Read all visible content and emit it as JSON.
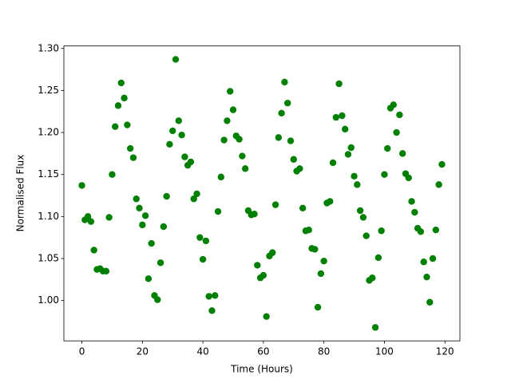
{
  "chart_data": {
    "type": "scatter",
    "x_label": "Time (Hours)",
    "y_label": "Normalised Flux",
    "color": "#008000",
    "x": [
      0,
      1,
      2,
      3,
      4,
      5,
      6,
      7,
      8,
      9,
      10,
      11,
      12,
      13,
      14,
      15,
      16,
      17,
      18,
      19,
      20,
      21,
      22,
      23,
      24,
      25,
      26,
      27,
      28,
      29,
      30,
      31,
      32,
      33,
      34,
      35,
      36,
      37,
      38,
      39,
      40,
      41,
      42,
      43,
      44,
      45,
      46,
      47,
      48,
      49,
      50,
      51,
      52,
      53,
      54,
      55,
      56,
      57,
      58,
      59,
      60,
      61,
      62,
      63,
      64,
      65,
      66,
      67,
      68,
      69,
      70,
      71,
      72,
      73,
      74,
      75,
      76,
      77,
      78,
      79,
      80,
      81,
      82,
      83,
      84,
      85,
      86,
      87,
      88,
      89,
      90,
      91,
      92,
      93,
      94,
      95,
      96,
      97,
      98,
      99,
      100,
      101,
      102,
      103,
      104,
      105,
      106,
      107,
      108,
      109,
      110,
      111,
      112,
      113,
      114,
      115,
      116,
      117,
      118,
      119
    ],
    "y": [
      1.137,
      1.096,
      1.1,
      1.094,
      1.06,
      1.037,
      1.038,
      1.035,
      1.035,
      1.099,
      1.15,
      1.207,
      1.232,
      1.259,
      1.241,
      1.209,
      1.181,
      1.17,
      1.121,
      1.11,
      1.09,
      1.101,
      1.026,
      1.068,
      1.006,
      1.001,
      1.045,
      1.088,
      1.124,
      1.186,
      1.202,
      1.287,
      1.214,
      1.197,
      1.171,
      1.161,
      1.165,
      1.121,
      1.127,
      1.075,
      1.049,
      1.071,
      1.005,
      0.988,
      1.006,
      1.106,
      1.147,
      1.191,
      1.214,
      1.249,
      1.227,
      1.196,
      1.192,
      1.172,
      1.157,
      1.107,
      1.102,
      1.103,
      1.042,
      1.027,
      1.03,
      0.981,
      1.053,
      1.057,
      1.114,
      1.194,
      1.223,
      1.26,
      1.235,
      1.19,
      1.168,
      1.154,
      1.157,
      1.11,
      1.083,
      1.084,
      1.062,
      1.061,
      0.992,
      1.032,
      1.047,
      1.116,
      1.118,
      1.164,
      1.218,
      1.258,
      1.22,
      1.204,
      1.174,
      1.182,
      1.148,
      1.138,
      1.107,
      1.099,
      1.077,
      1.024,
      1.027,
      0.968,
      1.051,
      1.083,
      1.15,
      1.181,
      1.229,
      1.233,
      1.2,
      1.221,
      1.175,
      1.151,
      1.146,
      1.118,
      1.105,
      1.086,
      1.082,
      1.046,
      1.028,
      0.998,
      1.05,
      1.084,
      1.138,
      1.162
    ],
    "xlim": [
      -5.95,
      124.95
    ],
    "ylim": [
      0.952,
      1.303
    ],
    "xticks": [
      0,
      20,
      40,
      60,
      80,
      100,
      120
    ],
    "yticks": [
      {
        "value": 1.0,
        "label": "1.00"
      },
      1.05,
      {
        "value": 1.1,
        "label": "1.10"
      },
      1.15,
      {
        "value": 1.2,
        "label": "1.20"
      },
      1.25,
      {
        "value": 1.3,
        "label": "1.30"
      }
    ]
  }
}
